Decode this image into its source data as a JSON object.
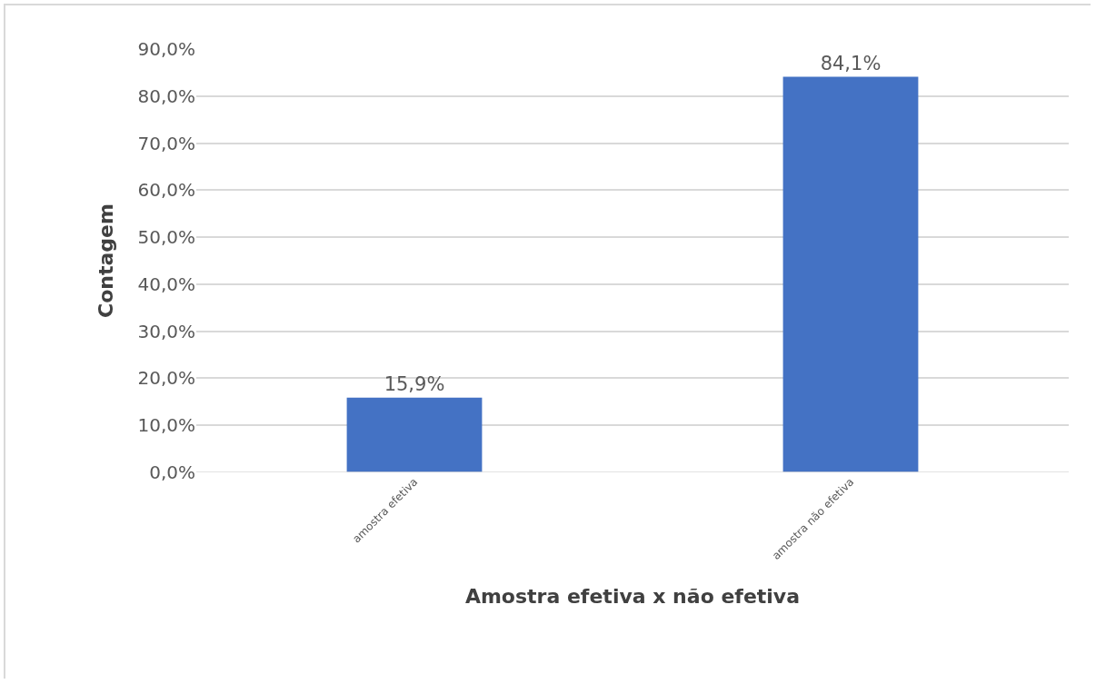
{
  "chart_data": {
    "type": "bar",
    "xlabel": "Amostra efetiva x não efetiva",
    "ylabel": "Contagem",
    "categories": [
      "amostra efetiva",
      "amostra não efetiva"
    ],
    "values": [
      15.9,
      84.1
    ],
    "color": "#4472c4",
    "value_labels": [
      "15,9%",
      "84,1%"
    ],
    "ylim": [
      0,
      90
    ],
    "yticks": [
      {
        "value": 0,
        "label": "0,0%"
      },
      {
        "value": 10,
        "label": "10,0%"
      },
      {
        "value": 20,
        "label": "20,0%"
      },
      {
        "value": 30,
        "label": "30,0%"
      },
      {
        "value": 40,
        "label": "40,0%"
      },
      {
        "value": 50,
        "label": "50,0%"
      },
      {
        "value": 60,
        "label": "60,0%"
      },
      {
        "value": 70,
        "label": "70,0%"
      },
      {
        "value": 80,
        "label": "80,0%"
      },
      {
        "value": 90,
        "label": "90,0%"
      }
    ],
    "grid": "y"
  }
}
